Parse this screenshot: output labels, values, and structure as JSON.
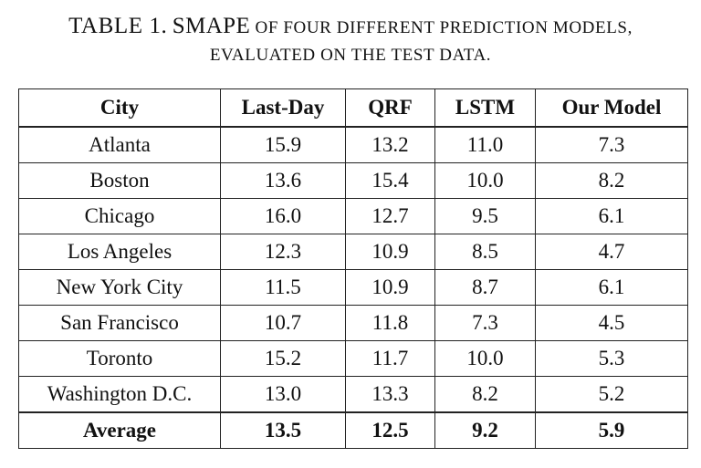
{
  "caption": {
    "label": "TABLE 1.",
    "metric": "SMAPE",
    "line1_rest": "OF FOUR DIFFERENT PREDICTION MODELS,",
    "line2": "EVALUATED ON THE TEST DATA."
  },
  "table": {
    "headers": [
      "City",
      "Last-Day",
      "QRF",
      "LSTM",
      "Our Model"
    ],
    "rows": [
      [
        "Atlanta",
        "15.9",
        "13.2",
        "11.0",
        "7.3"
      ],
      [
        "Boston",
        "13.6",
        "15.4",
        "10.0",
        "8.2"
      ],
      [
        "Chicago",
        "16.0",
        "12.7",
        "9.5",
        "6.1"
      ],
      [
        "Los Angeles",
        "12.3",
        "10.9",
        "8.5",
        "4.7"
      ],
      [
        "New York City",
        "11.5",
        "10.9",
        "8.7",
        "6.1"
      ],
      [
        "San Francisco",
        "10.7",
        "11.8",
        "7.3",
        "4.5"
      ],
      [
        "Toronto",
        "15.2",
        "11.7",
        "10.0",
        "5.3"
      ],
      [
        "Washington D.C.",
        "13.0",
        "13.3",
        "8.2",
        "5.2"
      ]
    ],
    "average": [
      "Average",
      "13.5",
      "12.5",
      "9.2",
      "5.9"
    ]
  }
}
